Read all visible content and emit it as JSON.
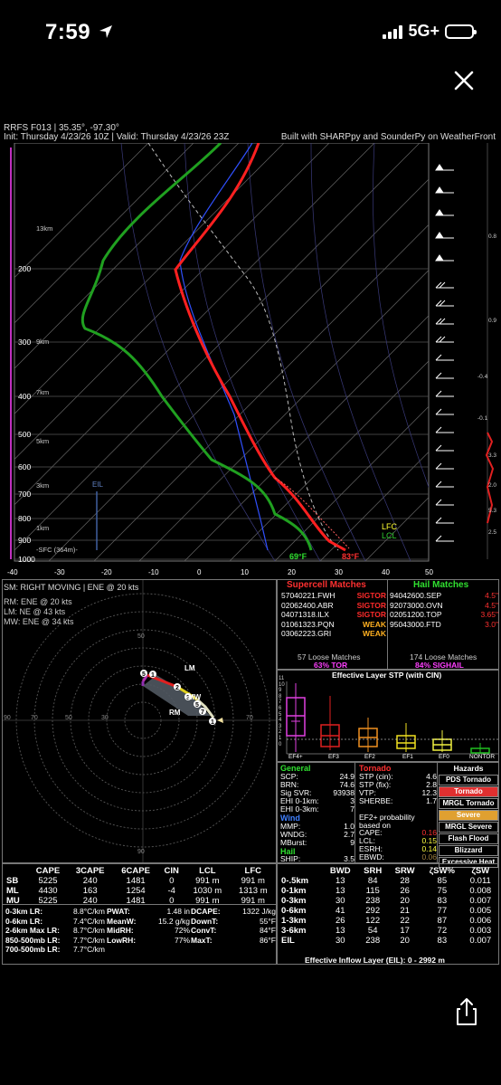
{
  "status_bar": {
    "time": "7:59",
    "network": "5G+"
  },
  "header": {
    "line1": "RRFS F013 | 35.35°, -97.30°",
    "line2_left": "Init: Thursday 4/23/26 10Z | Valid: Thursday 4/23/26 23Z",
    "line2_right": "Built with SHARPpy and SounderPy on WeatherFront"
  },
  "skewt": {
    "pressure_labels": [
      "200",
      "300",
      "400",
      "500",
      "600",
      "700",
      "800",
      "900",
      "1000"
    ],
    "height_labels": [
      "13km",
      "9km",
      "7km",
      "5km",
      "3km",
      "1km",
      "-SFC (364m)-"
    ],
    "temp_axis": [
      "-40",
      "-30",
      "-20",
      "-10",
      "0",
      "10",
      "20",
      "30",
      "40",
      "50"
    ],
    "sfc_td": "69°F",
    "sfc_t": "83°F",
    "eil_label": "EIL",
    "lfc_label": "LFC",
    "lcl_label": "LCL",
    "omega_labels": [
      "0.8",
      "0.9",
      "-0.4",
      "-0.1",
      "3.3",
      "2.0",
      "5.3",
      "2.5"
    ]
  },
  "hodograph": {
    "title": "SM: RIGHT MOVING | ENE @ 20 kts",
    "rm": "RM: ENE @ 20 kts",
    "lm": "LM: NE @ 43 kts",
    "mw": "MW: ENE @ 34 kts",
    "ring_labels": [
      "90",
      "70",
      "50",
      "30",
      "10"
    ],
    "marker_labels": [
      "LM",
      "MW",
      "RM"
    ]
  },
  "analogs": {
    "supercell_title": "Supercell Matches",
    "hail_title": "Hail Matches",
    "supercell": [
      {
        "name": "57040221.FWH",
        "tag": "SIGTOR",
        "color": "#ff2b2b"
      },
      {
        "name": "02062400.ABR",
        "tag": "SIGTOR",
        "color": "#ff2b2b"
      },
      {
        "name": "04071318.ILX",
        "tag": "SIGTOR",
        "color": "#ff2b2b"
      },
      {
        "name": "01061323.PQN",
        "tag": "WEAK",
        "color": "#ffb020"
      },
      {
        "name": "03062223.GRI",
        "tag": "WEAK",
        "color": "#ffb020"
      }
    ],
    "hail": [
      {
        "name": "94042600.SEP",
        "size": "4.5\""
      },
      {
        "name": "92073000.OVN",
        "size": "4.5\""
      },
      {
        "name": "02051200.TOP",
        "size": "3.65\""
      },
      {
        "name": "95043000.FTD",
        "size": "3.0\""
      }
    ],
    "loose_supercell": "57 Loose Matches",
    "loose_supercell_pct": "63% TOR",
    "loose_hail": "174 Loose Matches",
    "loose_hail_pct": "84% SIGHAIL"
  },
  "stp_box": {
    "title": "Effective Layer STP (with CIN)",
    "y_ticks": [
      "11",
      "10",
      "9",
      "8",
      "7",
      "6",
      "5",
      "4",
      "3",
      "2",
      "1",
      "0"
    ],
    "categories": [
      "EF4+",
      "EF3",
      "EF2",
      "EF1",
      "EF0",
      "NONTOR"
    ]
  },
  "general": {
    "title": "General",
    "rows": [
      {
        "k": "SCP:",
        "v": "24.9"
      },
      {
        "k": "BRN:",
        "v": "74.6"
      },
      {
        "k": "Sig SVR:",
        "v": "93938"
      },
      {
        "k": "EHI 0-1km:",
        "v": "3"
      },
      {
        "k": "EHI 0-3km:",
        "v": "7"
      }
    ],
    "wind_title": "Wind",
    "wind_rows": [
      {
        "k": "MMP:",
        "v": "1.0"
      },
      {
        "k": "WNDG:",
        "v": "2.7"
      },
      {
        "k": "MBurst:",
        "v": "9"
      }
    ],
    "hail_title": "Hail",
    "hail_rows": [
      {
        "k": "SHIP:",
        "v": "3.5"
      }
    ]
  },
  "tornado": {
    "title": "Tornado",
    "rows": [
      {
        "k": "STP (cin):",
        "v": "4.6"
      },
      {
        "k": "STP (fix):",
        "v": "2.8"
      },
      {
        "k": "VTP:",
        "v": "12.3"
      },
      {
        "k": "SHERBE:",
        "v": "1.7"
      }
    ],
    "ef_title1": "EF2+ probability",
    "ef_title2": "based on",
    "ef_rows": [
      {
        "k": "CAPE:",
        "v": "0.16",
        "color": "#ff3030"
      },
      {
        "k": "LCL:",
        "v": "0.15",
        "color": "#ffff40"
      },
      {
        "k": "ESRH:",
        "v": "0.14",
        "color": "#ffff40"
      },
      {
        "k": "EBWD:",
        "v": "0.06",
        "color": "#a08040"
      }
    ]
  },
  "hazards": {
    "title": "Hazards",
    "items": [
      {
        "label": "PDS Tornado",
        "bg": "#000",
        "fg": "#fff"
      },
      {
        "label": "Tornado",
        "bg": "#e03030",
        "fg": "#fff"
      },
      {
        "label": "MRGL Tornado",
        "bg": "#000",
        "fg": "#fff"
      },
      {
        "label": "Severe",
        "bg": "#e0a030",
        "fg": "#fff"
      },
      {
        "label": "MRGL Severe",
        "bg": "#000",
        "fg": "#fff"
      },
      {
        "label": "Flash Flood",
        "bg": "#000",
        "fg": "#fff"
      },
      {
        "label": "Blizzard",
        "bg": "#000",
        "fg": "#fff"
      },
      {
        "label": "Excessive Heat",
        "bg": "#000",
        "fg": "#fff"
      }
    ]
  },
  "parcels": {
    "headers": [
      "",
      "CAPE",
      "3CAPE",
      "6CAPE",
      "CIN",
      "LCL",
      "LFC"
    ],
    "rows": [
      [
        "SB",
        "5225",
        "240",
        "1481",
        "0",
        "991 m",
        "991 m"
      ],
      [
        "ML",
        "4430",
        "163",
        "1254",
        "-4",
        "1030 m",
        "1313 m"
      ],
      [
        "MU",
        "5225",
        "240",
        "1481",
        "0",
        "991 m",
        "991 m"
      ]
    ]
  },
  "lapse": {
    "left": [
      {
        "k": "0-3km LR:",
        "v": "8.8°C/km"
      },
      {
        "k": "0-6km LR:",
        "v": "7.4°C/km"
      },
      {
        "k": "2-6km Max LR:",
        "v": "8.7°C/km"
      },
      {
        "k": "850-500mb LR:",
        "v": "7.7°C/km"
      },
      {
        "k": "700-500mb LR:",
        "v": "7.7°C/km"
      }
    ],
    "mid": [
      {
        "k": "PWAT:",
        "v": "1.48 in"
      },
      {
        "k": "MeanW:",
        "v": "15.2 g/kg"
      },
      {
        "k": "MidRH:",
        "v": "72%"
      },
      {
        "k": "LowRH:",
        "v": "77%"
      }
    ],
    "right": [
      {
        "k": "DCAPE:",
        "v": "1322 J/kg"
      },
      {
        "k": "DownT:",
        "v": "55°F"
      },
      {
        "k": "ConvT:",
        "v": "84°F"
      },
      {
        "k": "MaxT:",
        "v": "86°F"
      }
    ]
  },
  "kinematics": {
    "headers": [
      "",
      "BWD",
      "SRH",
      "SRW",
      "ζSW%",
      "ζSW"
    ],
    "rows": [
      [
        "0-.5km",
        "13",
        "84",
        "28",
        "85",
        "0.011"
      ],
      [
        "0-1km",
        "13",
        "115",
        "26",
        "75",
        "0.008"
      ],
      [
        "0-3km",
        "30",
        "238",
        "20",
        "83",
        "0.007"
      ],
      [
        "0-6km",
        "41",
        "292",
        "21",
        "77",
        "0.005"
      ],
      [
        "1-3km",
        "26",
        "122",
        "22",
        "87",
        "0.006"
      ],
      [
        "3-6km",
        "13",
        "54",
        "17",
        "72",
        "0.003"
      ],
      [
        "EIL",
        "30",
        "238",
        "20",
        "83",
        "0.007"
      ]
    ],
    "footer": "Effective Inflow Layer (EIL): 0 - 2992 m"
  },
  "colors": {
    "temperature": "#ff2020",
    "dewpoint": "#20a020",
    "wetbulb": "#3050ff",
    "accent_magenta": "#ff40ff"
  }
}
